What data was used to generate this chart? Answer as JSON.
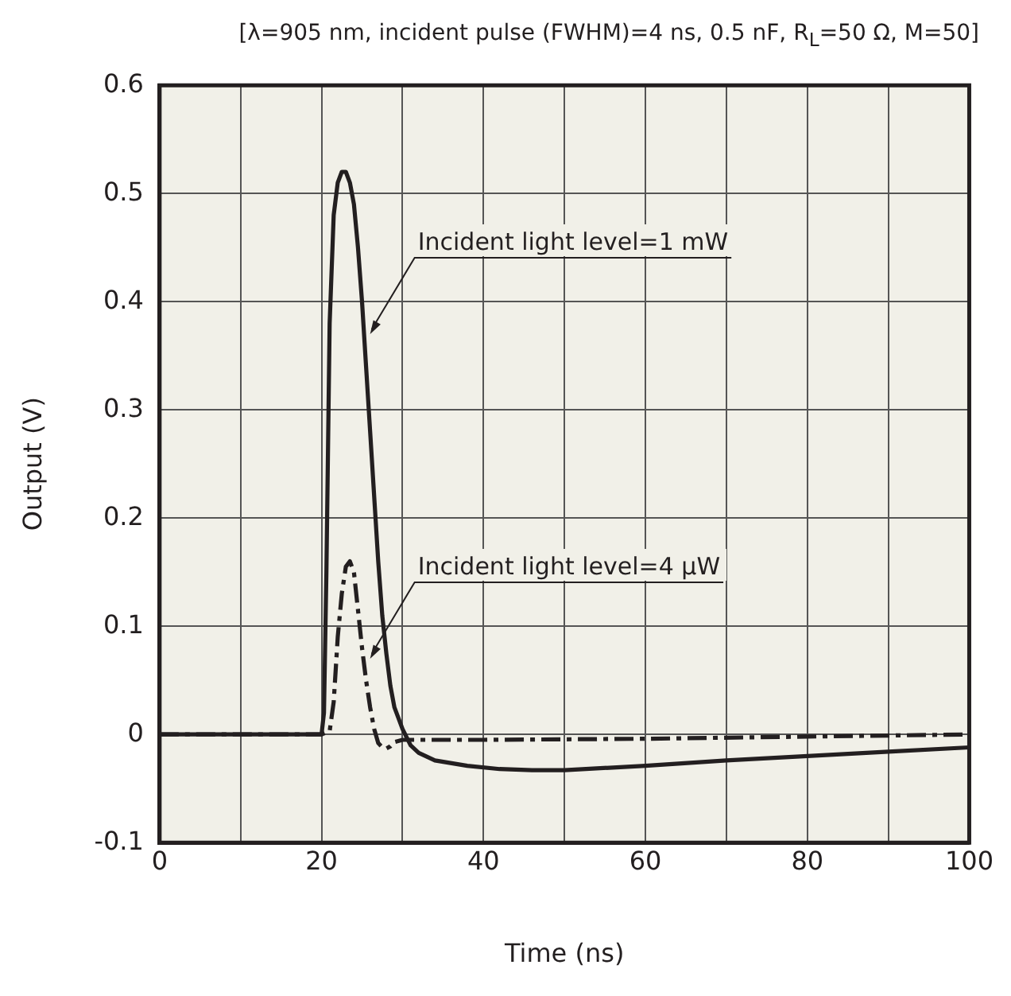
{
  "chart_data": {
    "type": "line",
    "title": "[λ=905 nm, incident pulse (FWHM)=4 ns, 0.5 nF, R$_{L}$=50 Ω, M=50]",
    "xlabel": "Time (ns)",
    "ylabel": "Output (V)",
    "xlim": [
      0,
      100
    ],
    "xticks": [
      0,
      {
        "value": 10,
        "label": null
      },
      20,
      {
        "value": 30,
        "label": null
      },
      40,
      {
        "value": 50,
        "label": null
      },
      60,
      {
        "value": 70,
        "label": null
      },
      80,
      {
        "value": 90,
        "label": null
      },
      100
    ],
    "ylim": [
      -0.1,
      0.6
    ],
    "yticks": [
      -0.1,
      0,
      0.1,
      0.2,
      0.3,
      0.4,
      0.5,
      0.6
    ],
    "grid": true,
    "legend": false,
    "marker": "none",
    "series": [
      {
        "color": "#231f20",
        "line_style": "solid",
        "x": [
          0,
          20,
          20.3,
          20.6,
          21,
          21.5,
          22,
          22.5,
          23,
          23.5,
          24,
          24.5,
          25,
          25.5,
          26,
          26.5,
          27,
          27.5,
          28,
          28.5,
          29,
          30,
          31,
          32,
          34,
          38,
          42,
          46,
          50,
          60,
          70,
          80,
          90,
          100
        ],
        "values": [
          0,
          0,
          0.02,
          0.15,
          0.38,
          0.48,
          0.51,
          0.52,
          0.52,
          0.51,
          0.49,
          0.45,
          0.4,
          0.34,
          0.28,
          0.22,
          0.16,
          0.11,
          0.075,
          0.045,
          0.025,
          0.005,
          -0.01,
          -0.017,
          -0.024,
          -0.029,
          -0.032,
          -0.033,
          -0.033,
          -0.029,
          -0.024,
          -0.02,
          -0.016,
          -0.012
        ]
      },
      {
        "color": "#231f20",
        "line_style": "dashed",
        "x": [
          0,
          20,
          21,
          21.5,
          22,
          22.5,
          23,
          23.5,
          24,
          24.5,
          25,
          25.5,
          26,
          26.5,
          27,
          27.5,
          28,
          28.5,
          29,
          30,
          40,
          60,
          80,
          100
        ],
        "values": [
          0,
          0,
          0.003,
          0.03,
          0.09,
          0.13,
          0.155,
          0.16,
          0.15,
          0.115,
          0.08,
          0.05,
          0.025,
          0.005,
          -0.008,
          -0.012,
          -0.013,
          -0.011,
          -0.007,
          -0.005,
          -0.005,
          -0.004,
          -0.002,
          0
        ]
      }
    ],
    "annotations": [
      {
        "text": "Incident light level=1 mW",
        "x": 26,
        "y": 0.37
      },
      {
        "text": "Incident light level=4 µW",
        "x": 26,
        "y": 0.07
      }
    ]
  }
}
